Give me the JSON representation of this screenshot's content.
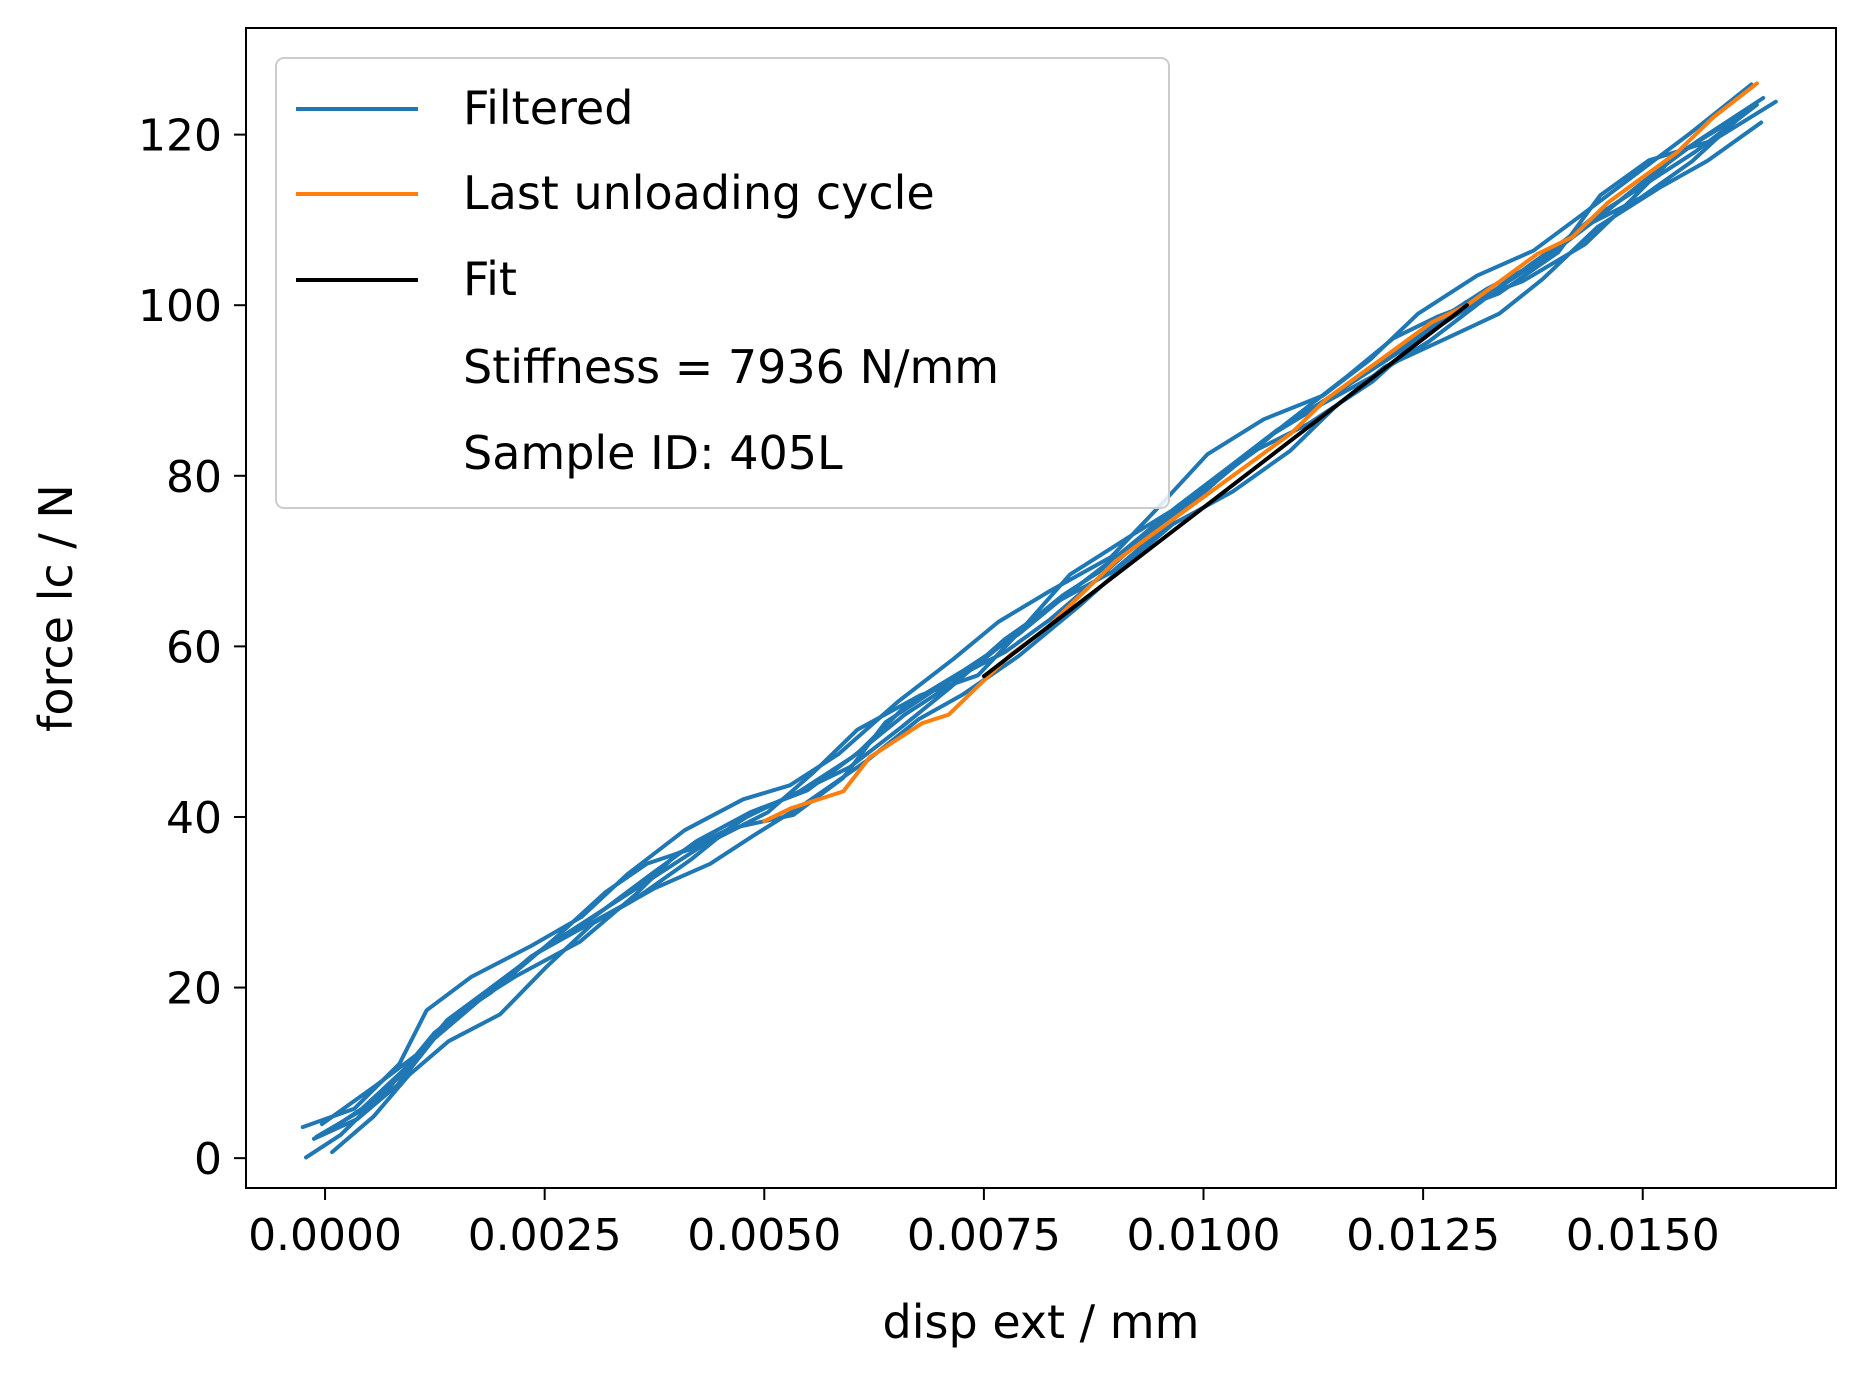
{
  "chart_data": {
    "type": "line",
    "title": "",
    "xlabel": "disp ext / mm",
    "ylabel": "force lc / N",
    "xlim": [
      -0.0009,
      0.0172
    ],
    "ylim": [
      -3.5,
      132.5
    ],
    "x_ticks": [
      0.0,
      0.0025,
      0.005,
      0.0075,
      0.01,
      0.0125,
      0.015
    ],
    "x_tick_labels": [
      "0.0000",
      "0.0025",
      "0.0050",
      "0.0075",
      "0.0100",
      "0.0125",
      "0.0150"
    ],
    "y_ticks": [
      0,
      20,
      40,
      60,
      80,
      100,
      120
    ],
    "y_tick_labels": [
      "0",
      "20",
      "40",
      "60",
      "80",
      "100",
      "120"
    ],
    "grid": false,
    "legend": {
      "position": "top-left",
      "entries": [
        {
          "label": "Filtered",
          "color": "#1f77b4"
        },
        {
          "label": "Last unloading cycle",
          "color": "#ff7f0e"
        },
        {
          "label": "Fit",
          "color": "#000000"
        },
        {
          "label": "Stiffness = 7936 N/mm",
          "color": ""
        },
        {
          "label": "Sample ID: 405L",
          "color": ""
        }
      ]
    },
    "series": [
      {
        "name": "Filtered",
        "color": "#1f77b4",
        "note_points": "representative digitized trace of repeated load/unload cycles",
        "x": [
          -0.0001,
          0.0004,
          0.0009,
          0.0013,
          0.0018,
          0.0024,
          0.003,
          0.0036,
          0.0042,
          0.0048,
          0.0054,
          0.006,
          0.0066,
          0.0072,
          0.0078,
          0.0084,
          0.009,
          0.0096,
          0.0102,
          0.0108,
          0.0114,
          0.012,
          0.0126,
          0.0132,
          0.0138,
          0.0144,
          0.015,
          0.0156,
          0.0163
        ],
        "y": [
          2.5,
          5.5,
          10,
          15,
          19,
          24,
          28,
          32,
          36,
          40,
          43,
          47,
          52,
          56,
          61,
          66,
          70,
          75,
          80,
          85,
          89,
          93,
          97,
          101,
          105,
          110,
          114,
          118,
          123.5
        ]
      },
      {
        "name": "Last unloading cycle",
        "color": "#ff7f0e",
        "x": [
          0.005,
          0.0053,
          0.0056,
          0.0059,
          0.0062,
          0.0065,
          0.0068,
          0.0071,
          0.0074,
          0.0078,
          0.0082,
          0.0086,
          0.009,
          0.0094,
          0.0098,
          0.0102,
          0.0106,
          0.011,
          0.0114,
          0.0118,
          0.0122,
          0.0126,
          0.013,
          0.0134,
          0.0138,
          0.0142,
          0.0146,
          0.015,
          0.0154,
          0.0158,
          0.0163
        ],
        "y": [
          39.5,
          41,
          42,
          43,
          47,
          49,
          51,
          52,
          55,
          59,
          62,
          66,
          70,
          73,
          76,
          79,
          82,
          85,
          89,
          92,
          95,
          98,
          100,
          103,
          106,
          108,
          112,
          115,
          118,
          122,
          126
        ]
      },
      {
        "name": "Fit",
        "color": "#000000",
        "x": [
          0.0075,
          0.013
        ],
        "y": [
          56.5,
          100
        ]
      }
    ]
  }
}
